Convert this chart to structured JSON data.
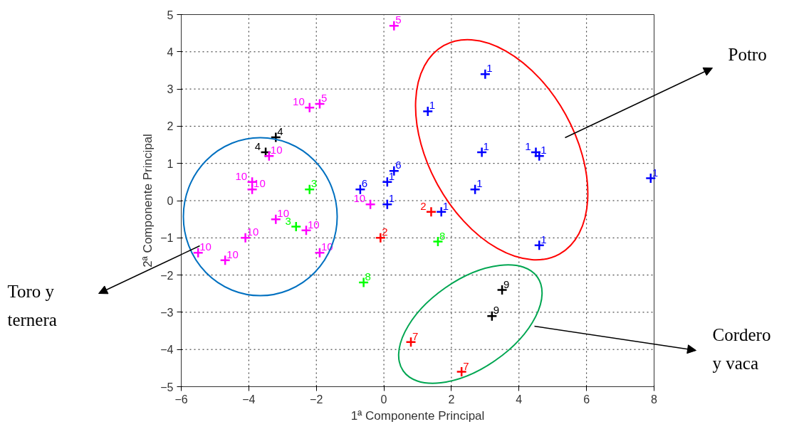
{
  "chart_data": {
    "type": "scatter",
    "xlabel": "1ª Componente Principal",
    "ylabel": "2ª Componente Principal",
    "xlim": [
      -6,
      8
    ],
    "ylim": [
      -5,
      5
    ],
    "xticks": [
      -6,
      -4,
      -2,
      0,
      2,
      4,
      6,
      8
    ],
    "yticks": [
      -5,
      -4,
      -3,
      -2,
      -1,
      0,
      1,
      2,
      3,
      4,
      5
    ],
    "grid": true,
    "marker": "cross",
    "annotations": [
      "Potro",
      "Toro y ternera",
      "Cordero y vaca"
    ],
    "series": [
      {
        "name": "1",
        "color": "#0000ff",
        "x": [
          0.1,
          0.1,
          3.0,
          1.3,
          2.9,
          4.5,
          4.6,
          7.9,
          2.7,
          1.7,
          4.6
        ],
        "values": [
          0.5,
          -0.1,
          3.4,
          2.4,
          1.3,
          1.3,
          1.2,
          0.6,
          0.3,
          -0.3,
          -1.2
        ]
      },
      {
        "name": "2",
        "color": "#ff0000",
        "x": [
          -0.1,
          1.4
        ],
        "values": [
          -1.0,
          -0.3
        ]
      },
      {
        "name": "3",
        "color": "#00ff00",
        "x": [
          -2.2,
          -2.6
        ],
        "values": [
          0.3,
          -0.7
        ]
      },
      {
        "name": "4",
        "color": "#000000",
        "x": [
          -3.2,
          -3.5
        ],
        "values": [
          1.7,
          1.3
        ]
      },
      {
        "name": "5",
        "color": "#ff00ff",
        "x": [
          0.3,
          -1.9
        ],
        "values": [
          4.7,
          2.6
        ]
      },
      {
        "name": "6",
        "color": "#0000ff",
        "x": [
          -0.7,
          0.3
        ],
        "values": [
          0.3,
          0.8
        ]
      },
      {
        "name": "7",
        "color": "#ff0000",
        "x": [
          0.8,
          2.3
        ],
        "values": [
          -3.8,
          -4.6
        ]
      },
      {
        "name": "8",
        "color": "#00ff00",
        "x": [
          -0.6,
          1.6
        ],
        "values": [
          -2.2,
          -1.1
        ]
      },
      {
        "name": "9",
        "color": "#000000",
        "x": [
          3.5,
          3.2
        ],
        "values": [
          -2.4,
          -3.1
        ]
      },
      {
        "name": "10",
        "color": "#ff00ff",
        "x": [
          -2.2,
          -3.4,
          -3.9,
          -3.9,
          -0.4,
          -3.2,
          -2.3,
          -4.1,
          -5.5,
          -4.7,
          -1.9
        ],
        "values": [
          2.5,
          1.2,
          0.5,
          0.3,
          -0.1,
          -0.5,
          -0.8,
          -1.0,
          -1.4,
          -1.6,
          -1.4
        ]
      }
    ]
  }
}
